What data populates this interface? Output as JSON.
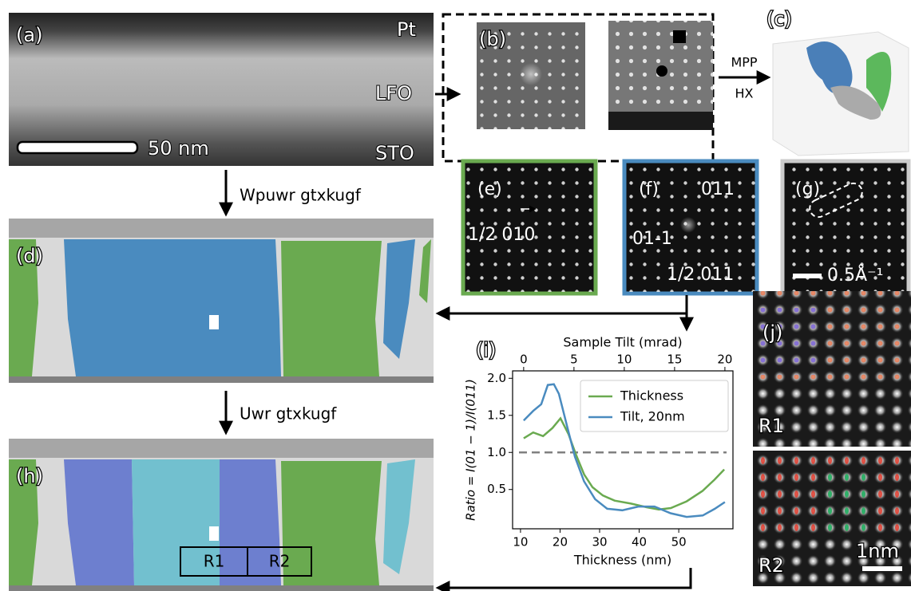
{
  "panels": {
    "a": {
      "label": "(a)",
      "layers": [
        "Pt",
        "LFO",
        "STO"
      ],
      "scale_bar": "50 nm"
    },
    "b": {
      "label": "(b)"
    },
    "steps": [
      "MPP",
      "HX"
    ],
    "c": {
      "label": "(c)"
    },
    "d": {
      "label": "(d)",
      "step": "Wpuwr gtxkugf"
    },
    "e": {
      "label": "(e)",
      "annotations": [
        "1/2 010"
      ]
    },
    "f": {
      "label": "(f)",
      "annotations": [
        "011",
        "01-1",
        "1/2 011"
      ]
    },
    "g": {
      "label": "(g)",
      "scale_bar": "0.5Å⁻¹"
    },
    "h": {
      "label": "(h)",
      "step": "Uwr gtxkugf",
      "regions": [
        "R1",
        "R2"
      ]
    },
    "i": {
      "label": "(i)"
    },
    "j": {
      "label": "(j)",
      "regions": [
        "R1",
        "R2"
      ],
      "scale_bar": "1nm"
    }
  },
  "chart_data": {
    "type": "line",
    "xlabel": "Thickness (nm)",
    "x2label": "Sample Tilt (mrad)",
    "ylabel": "Ratio = I(01 − 1)/I(011)",
    "xlim": [
      8,
      63.7
    ],
    "xticks": [
      10,
      20,
      30,
      40,
      50
    ],
    "x2lim": [
      -1.1,
      20.8
    ],
    "x2ticks": [
      0,
      5,
      10,
      15,
      20
    ],
    "ylim": [
      -0.03,
      2.1
    ],
    "yticks": [
      0.5,
      {
        "value": 1,
        "label": "1.0"
      },
      1.5,
      {
        "value": 2,
        "label": "2.0"
      }
    ],
    "hline": 1,
    "legend": "upper right",
    "series": [
      {
        "name": "Thickness",
        "color": "#6aaa50",
        "x": [
          10.8,
          13.2,
          15.7,
          18.1,
          20.1,
          22.1,
          24.1,
          26.1,
          28.2,
          30.8,
          33.8,
          37.9,
          41.9,
          45,
          48,
          52,
          56,
          59,
          61.5
        ],
        "values": [
          1.19,
          1.27,
          1.22,
          1.33,
          1.46,
          1.25,
          0.96,
          0.7,
          0.53,
          0.42,
          0.35,
          0.31,
          0.26,
          0.23,
          0.25,
          0.34,
          0.48,
          0.63,
          0.77
        ]
      },
      {
        "name": "Tilt, 20nm",
        "color": "#4a8bbf",
        "axis": "x2",
        "x": [
          0,
          0.95,
          1.75,
          2.4,
          3.0,
          3.5,
          4.3,
          5.1,
          6.0,
          7.1,
          8.3,
          9.8,
          11.4,
          13,
          14.6,
          16.2,
          17.8,
          19,
          20
        ],
        "values": [
          1.43,
          1.56,
          1.65,
          1.91,
          1.92,
          1.79,
          1.36,
          0.94,
          0.61,
          0.37,
          0.24,
          0.22,
          0.27,
          0.27,
          0.18,
          0.13,
          0.15,
          0.24,
          0.33
        ]
      }
    ]
  }
}
